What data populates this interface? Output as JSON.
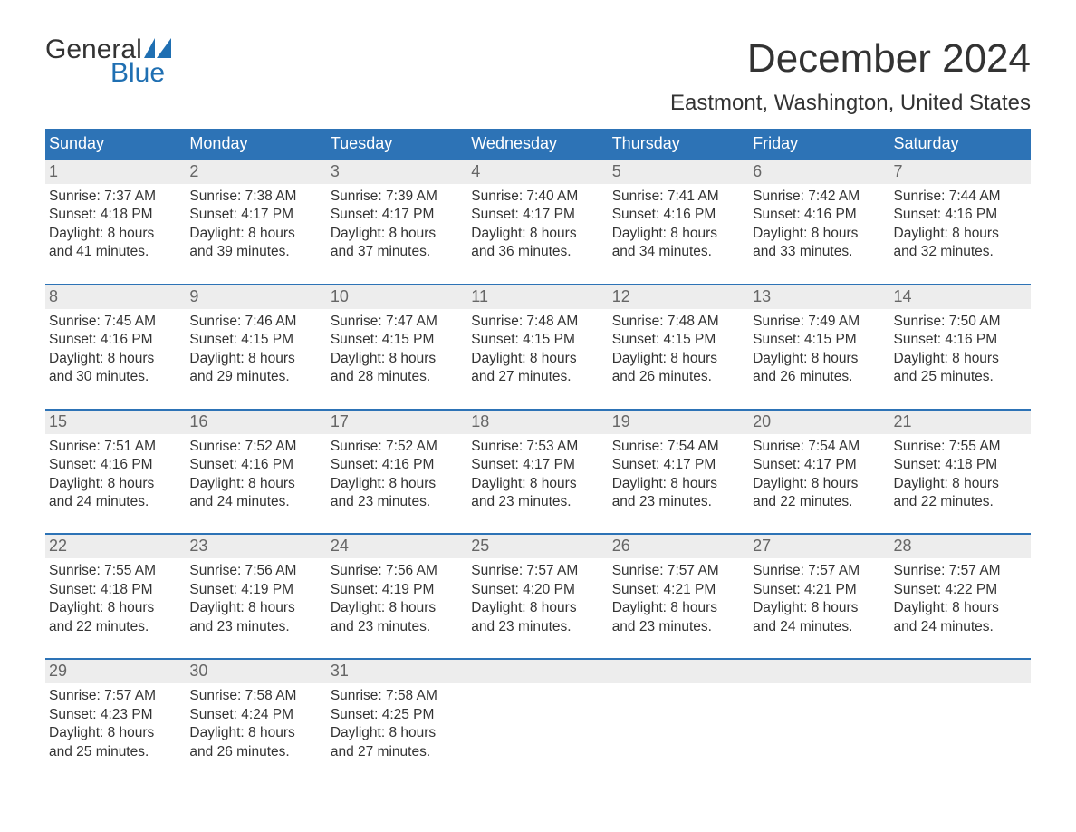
{
  "logo": {
    "word1": "General",
    "word2": "Blue"
  },
  "title": "December 2024",
  "location": "Eastmont, Washington, United States",
  "header_bg": "#2d73b6",
  "header_text_color": "#ffffff",
  "daynum_bg": "#ededed",
  "daynum_color": "#666666",
  "body_text_color": "#333333",
  "week_border_color": "#2d73b6",
  "day_names": [
    "Sunday",
    "Monday",
    "Tuesday",
    "Wednesday",
    "Thursday",
    "Friday",
    "Saturday"
  ],
  "weeks": [
    [
      {
        "n": "1",
        "sr": "7:37 AM",
        "ss": "4:18 PM",
        "dl1": "8 hours",
        "dl2": "and 41 minutes."
      },
      {
        "n": "2",
        "sr": "7:38 AM",
        "ss": "4:17 PM",
        "dl1": "8 hours",
        "dl2": "and 39 minutes."
      },
      {
        "n": "3",
        "sr": "7:39 AM",
        "ss": "4:17 PM",
        "dl1": "8 hours",
        "dl2": "and 37 minutes."
      },
      {
        "n": "4",
        "sr": "7:40 AM",
        "ss": "4:17 PM",
        "dl1": "8 hours",
        "dl2": "and 36 minutes."
      },
      {
        "n": "5",
        "sr": "7:41 AM",
        "ss": "4:16 PM",
        "dl1": "8 hours",
        "dl2": "and 34 minutes."
      },
      {
        "n": "6",
        "sr": "7:42 AM",
        "ss": "4:16 PM",
        "dl1": "8 hours",
        "dl2": "and 33 minutes."
      },
      {
        "n": "7",
        "sr": "7:44 AM",
        "ss": "4:16 PM",
        "dl1": "8 hours",
        "dl2": "and 32 minutes."
      }
    ],
    [
      {
        "n": "8",
        "sr": "7:45 AM",
        "ss": "4:16 PM",
        "dl1": "8 hours",
        "dl2": "and 30 minutes."
      },
      {
        "n": "9",
        "sr": "7:46 AM",
        "ss": "4:15 PM",
        "dl1": "8 hours",
        "dl2": "and 29 minutes."
      },
      {
        "n": "10",
        "sr": "7:47 AM",
        "ss": "4:15 PM",
        "dl1": "8 hours",
        "dl2": "and 28 minutes."
      },
      {
        "n": "11",
        "sr": "7:48 AM",
        "ss": "4:15 PM",
        "dl1": "8 hours",
        "dl2": "and 27 minutes."
      },
      {
        "n": "12",
        "sr": "7:48 AM",
        "ss": "4:15 PM",
        "dl1": "8 hours",
        "dl2": "and 26 minutes."
      },
      {
        "n": "13",
        "sr": "7:49 AM",
        "ss": "4:15 PM",
        "dl1": "8 hours",
        "dl2": "and 26 minutes."
      },
      {
        "n": "14",
        "sr": "7:50 AM",
        "ss": "4:16 PM",
        "dl1": "8 hours",
        "dl2": "and 25 minutes."
      }
    ],
    [
      {
        "n": "15",
        "sr": "7:51 AM",
        "ss": "4:16 PM",
        "dl1": "8 hours",
        "dl2": "and 24 minutes."
      },
      {
        "n": "16",
        "sr": "7:52 AM",
        "ss": "4:16 PM",
        "dl1": "8 hours",
        "dl2": "and 24 minutes."
      },
      {
        "n": "17",
        "sr": "7:52 AM",
        "ss": "4:16 PM",
        "dl1": "8 hours",
        "dl2": "and 23 minutes."
      },
      {
        "n": "18",
        "sr": "7:53 AM",
        "ss": "4:17 PM",
        "dl1": "8 hours",
        "dl2": "and 23 minutes."
      },
      {
        "n": "19",
        "sr": "7:54 AM",
        "ss": "4:17 PM",
        "dl1": "8 hours",
        "dl2": "and 23 minutes."
      },
      {
        "n": "20",
        "sr": "7:54 AM",
        "ss": "4:17 PM",
        "dl1": "8 hours",
        "dl2": "and 22 minutes."
      },
      {
        "n": "21",
        "sr": "7:55 AM",
        "ss": "4:18 PM",
        "dl1": "8 hours",
        "dl2": "and 22 minutes."
      }
    ],
    [
      {
        "n": "22",
        "sr": "7:55 AM",
        "ss": "4:18 PM",
        "dl1": "8 hours",
        "dl2": "and 22 minutes."
      },
      {
        "n": "23",
        "sr": "7:56 AM",
        "ss": "4:19 PM",
        "dl1": "8 hours",
        "dl2": "and 23 minutes."
      },
      {
        "n": "24",
        "sr": "7:56 AM",
        "ss": "4:19 PM",
        "dl1": "8 hours",
        "dl2": "and 23 minutes."
      },
      {
        "n": "25",
        "sr": "7:57 AM",
        "ss": "4:20 PM",
        "dl1": "8 hours",
        "dl2": "and 23 minutes."
      },
      {
        "n": "26",
        "sr": "7:57 AM",
        "ss": "4:21 PM",
        "dl1": "8 hours",
        "dl2": "and 23 minutes."
      },
      {
        "n": "27",
        "sr": "7:57 AM",
        "ss": "4:21 PM",
        "dl1": "8 hours",
        "dl2": "and 24 minutes."
      },
      {
        "n": "28",
        "sr": "7:57 AM",
        "ss": "4:22 PM",
        "dl1": "8 hours",
        "dl2": "and 24 minutes."
      }
    ],
    [
      {
        "n": "29",
        "sr": "7:57 AM",
        "ss": "4:23 PM",
        "dl1": "8 hours",
        "dl2": "and 25 minutes."
      },
      {
        "n": "30",
        "sr": "7:58 AM",
        "ss": "4:24 PM",
        "dl1": "8 hours",
        "dl2": "and 26 minutes."
      },
      {
        "n": "31",
        "sr": "7:58 AM",
        "ss": "4:25 PM",
        "dl1": "8 hours",
        "dl2": "and 27 minutes."
      },
      null,
      null,
      null,
      null
    ]
  ],
  "labels": {
    "sunrise": "Sunrise: ",
    "sunset": "Sunset: ",
    "daylight": "Daylight: "
  }
}
